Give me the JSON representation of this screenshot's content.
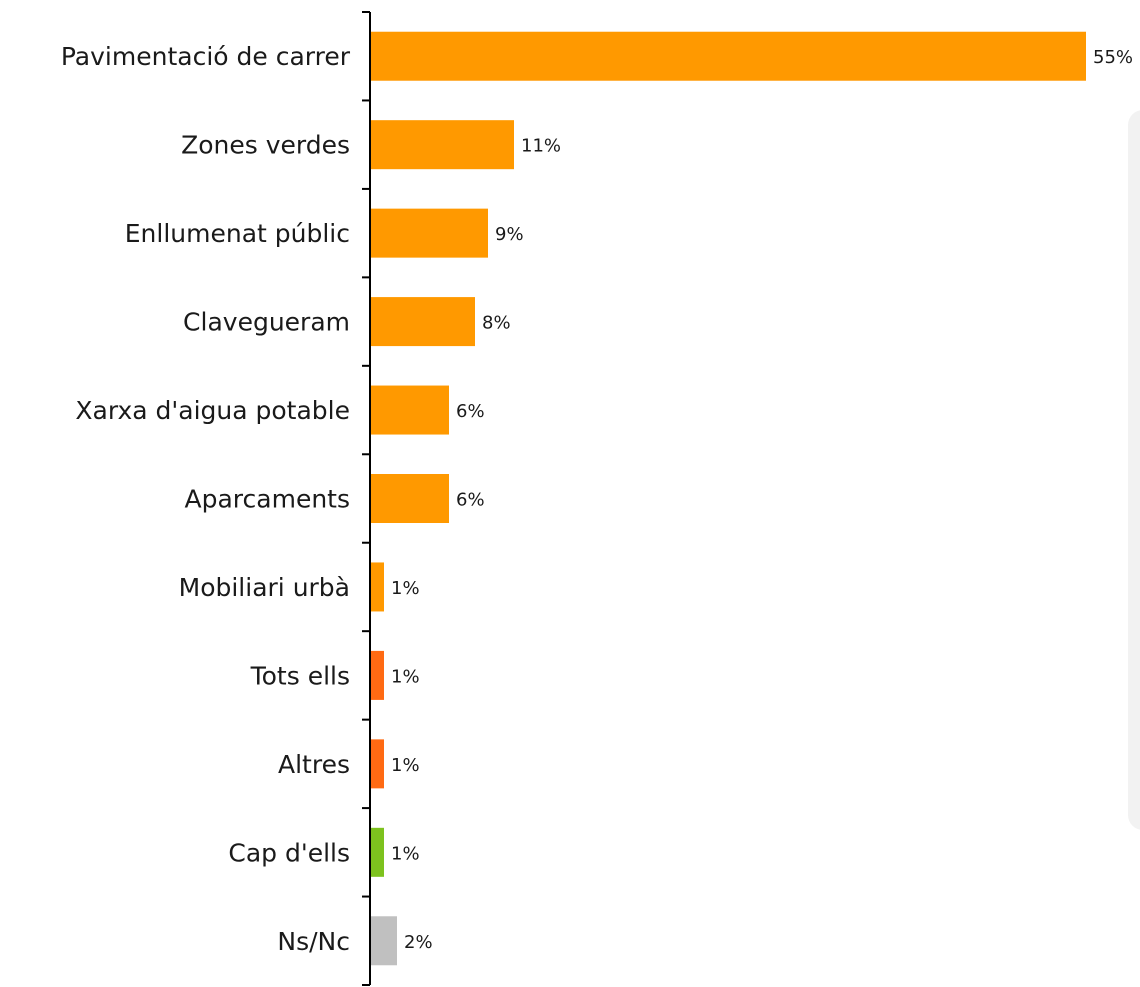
{
  "chart_data": {
    "type": "bar",
    "orientation": "horizontal",
    "categories": [
      "Pavimentació de carrer",
      "Zones verdes",
      "Enllumenat públic",
      "Clavegueram",
      "Xarxa d'aigua potable",
      "Aparcaments",
      "Mobiliari urbà",
      "Tots ells",
      "Altres",
      "Cap d'ells",
      "Ns/Nc"
    ],
    "values": [
      55,
      11,
      9,
      8,
      6,
      6,
      1,
      1,
      1,
      1,
      2
    ],
    "value_labels": [
      "55%",
      "11%",
      "9%",
      "8%",
      "6%",
      "6%",
      "1%",
      "1%",
      "1%",
      "1%",
      "2%"
    ],
    "bar_colors": [
      "#ff9900",
      "#ff9900",
      "#ff9900",
      "#ff9900",
      "#ff9900",
      "#ff9900",
      "#ff9900",
      "#ff6a13",
      "#ff6a13",
      "#7dc21e",
      "#c0c0c0"
    ],
    "title": "",
    "xlabel": "",
    "ylabel": "",
    "grid": false,
    "legend": "none"
  }
}
